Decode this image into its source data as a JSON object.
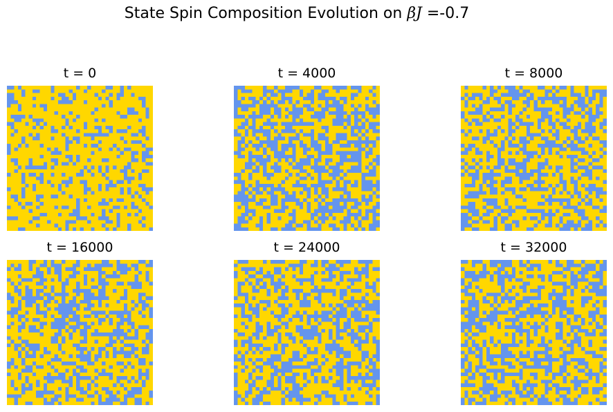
{
  "figure": {
    "title_prefix": "State Spin Composition Evolution on ",
    "title_symbol": "βJ",
    "title_suffix": " =-0.7"
  },
  "chart_data": {
    "type": "heatmap",
    "grid_size": 40,
    "colors": {
      "spin_up": "#FFD700",
      "spin_down": "#6495ED"
    },
    "up_fraction": [
      0.76,
      0.54,
      0.55,
      0.56,
      0.55,
      0.53
    ],
    "panels": [
      {
        "title": "t = 0",
        "t": 0
      },
      {
        "title": "t = 4000",
        "t": 4000
      },
      {
        "title": "t = 8000",
        "t": 8000
      },
      {
        "title": "t = 16000",
        "t": 16000
      },
      {
        "title": "t = 24000",
        "t": 24000
      },
      {
        "title": "t = 32000",
        "t": 32000
      }
    ]
  }
}
